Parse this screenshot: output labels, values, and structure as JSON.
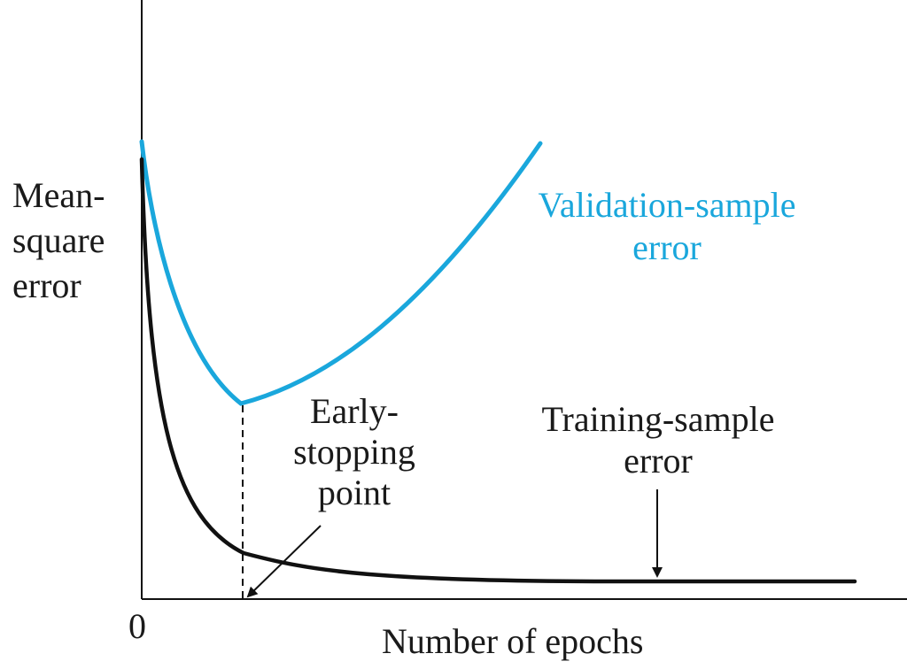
{
  "chart_data": {
    "type": "line",
    "title": "",
    "xlabel": "Number of epochs",
    "ylabel_lines": [
      "Mean-",
      "square",
      "error"
    ],
    "x_tick_labels": [
      "0"
    ],
    "grid": false,
    "series": [
      {
        "name": "Validation-sample error",
        "name_lines": [
          "Validation-sample",
          "error"
        ],
        "color": "#1aa7dc"
      },
      {
        "name": "Training-sample error",
        "name_lines": [
          "Training-sample",
          "error"
        ],
        "color": "#111111"
      }
    ],
    "annotations": [
      {
        "id": "early-stopping",
        "text_lines": [
          "Early-",
          "stopping",
          "point"
        ]
      }
    ]
  },
  "colors": {
    "axis": "#111111",
    "validation": "#1aa7dc",
    "training": "#111111"
  }
}
